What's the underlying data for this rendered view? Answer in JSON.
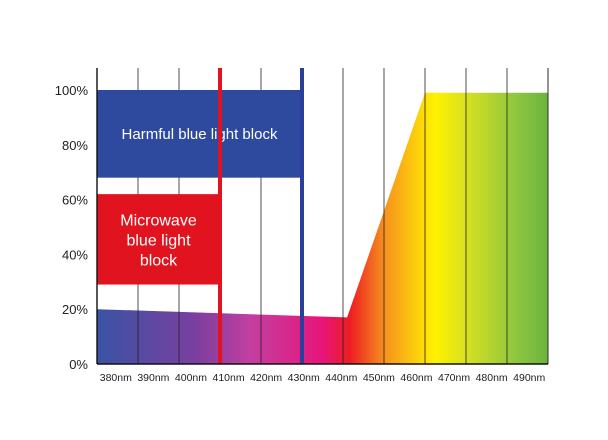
{
  "chart_data": {
    "type": "area",
    "title": "",
    "xlabel": "",
    "ylabel": "",
    "x_unit": "nm",
    "x_ticks": [
      380,
      390,
      400,
      410,
      420,
      430,
      440,
      450,
      460,
      470,
      480,
      490
    ],
    "x_tick_labels": [
      "380nm",
      "390nm",
      "400nm",
      "410nm",
      "420nm",
      "430nm",
      "440nm",
      "450nm",
      "460nm",
      "470nm",
      "480nm",
      "490nm"
    ],
    "xlim": [
      380,
      490
    ],
    "ylim": [
      0,
      100
    ],
    "y_ticks": [
      0,
      20,
      40,
      60,
      80,
      100
    ],
    "y_tick_labels": [
      "0%",
      "20%",
      "40%",
      "60%",
      "80%",
      "100%"
    ],
    "grid": {
      "vertical": true,
      "horizontal": false
    },
    "series": [
      {
        "x": [
          380,
          441,
          460,
          490
        ],
        "y": [
          20,
          17,
          99,
          99
        ]
      }
    ],
    "blocks": [
      {
        "label": "Harmful blue light block",
        "color": "#2e4a9e",
        "line_color": "#2a3f9a",
        "x_end": 430,
        "y_range": [
          68,
          100
        ]
      },
      {
        "label_lines": [
          "Microwave",
          "blue light",
          "block"
        ],
        "color": "#e0131f",
        "line_color": "#e0131f",
        "x_end": 410,
        "y_range": [
          29,
          62
        ]
      }
    ],
    "spectrum_colors": [
      "#3a53a4",
      "#7b3fa0",
      "#c23fa0",
      "#e8157a",
      "#ec1c24",
      "#f7941d",
      "#fff200",
      "#d7e021",
      "#8dc63f",
      "#6db33f"
    ]
  }
}
